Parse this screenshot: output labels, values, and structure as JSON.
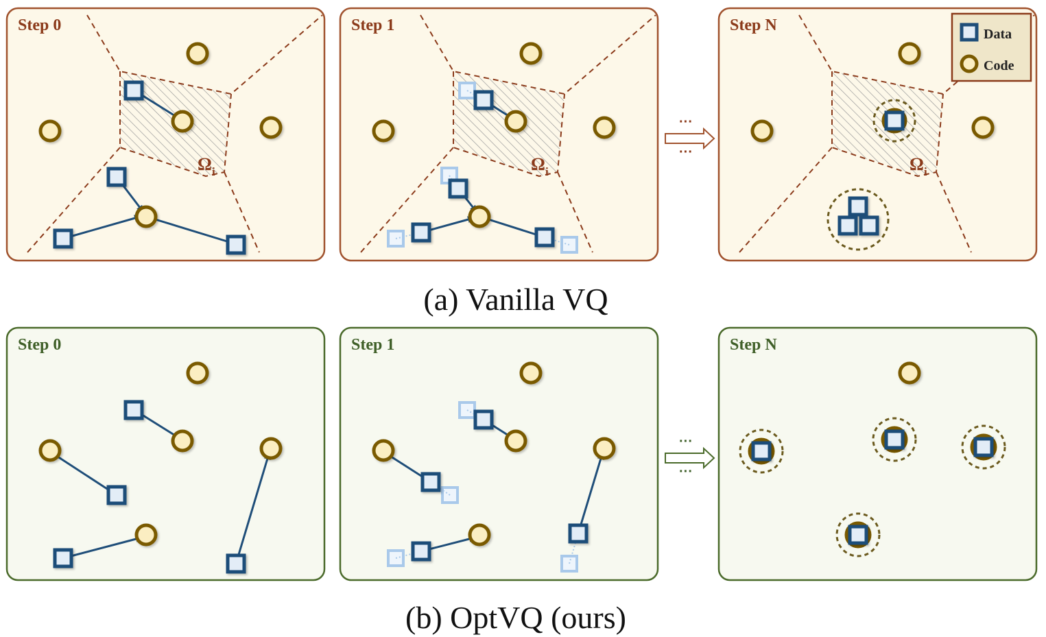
{
  "captions": {
    "vanilla": "(a) Vanilla VQ",
    "optvq": "(b) OptVQ (ours)"
  },
  "steps": {
    "step0": "Step 0",
    "step1": "Step 1",
    "stepN": "Step N"
  },
  "legend": {
    "data": "Data",
    "code": "Code"
  },
  "region": {
    "symbol": "Ω",
    "subscript": "i"
  },
  "ellipsis": "···",
  "colors": {
    "vanilla_panel_fill": "#fdf8e9",
    "vanilla_panel_border": "#a0522d",
    "vanilla_label": "#8b3a1a",
    "optvq_panel_fill": "#f7f9f0",
    "optvq_panel_border": "#4a6a2a",
    "optvq_label": "#3f5f28",
    "data_border": "#1f4e79",
    "data_fill": "#e3edf7",
    "data_faded": "#a9c9ea",
    "code_border": "#7a5a00",
    "code_fill": "#fbeec2",
    "arrow": "#1f4e79",
    "boundary": "#8b3a1a",
    "hatch": "#999999"
  },
  "icons": {
    "data": "square-data-icon",
    "code": "circle-code-icon",
    "arrow": "double-arrow-icon"
  }
}
